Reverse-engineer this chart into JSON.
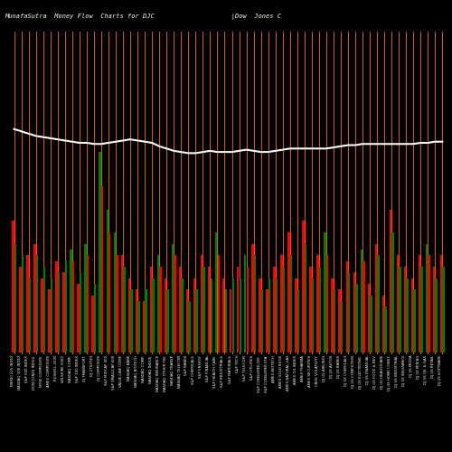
{
  "title": "MunafaSutra  Money Flow  Charts for DJC                    |Dow  Jones C                                                        omp",
  "bg_color": "#000000",
  "orange_line_color": "#FF6600",
  "white_line_color": "#FFFFFF",
  "n_stocks": 60,
  "stocks": [
    "NIKKEI 225 INDEX",
    "NASDAQ 100 INDEX",
    "S&P 500 INDEX",
    "DOW JONES INDUS.",
    "NYSE COMPOSITE",
    "AMEX COMPOSITE",
    "RUSSELL 2000",
    "WILSHIRE 5000",
    "NASDAQ COMP.",
    "S&P 100 INDEX",
    "DJ TRANSPORT.",
    "DJ UTILITIES",
    "DJ COMPOSITE",
    "S&P MIDCAP 400",
    "S&P SMALLCAP 600",
    "VALUE LINE COMP.",
    "NASDAQ BANK",
    "NASDAQ BIOTECH",
    "NASDAQ COMP.",
    "NASDAQ INDUS.",
    "NASDAQ INSURANCE",
    "NASDAQ OTHER FIN.",
    "NASDAQ TRANSP.",
    "NASDAQ TELECOM",
    "S&P BANKS",
    "S&P CHEMICALS",
    "S&P ENERGY",
    "S&P FINANCIAL",
    "S&P HEALTH CARE",
    "S&P INDUSTRIALS",
    "S&P MATERIALS",
    "S&P TECH",
    "S&P TELECOM",
    "S&P UTILITIES",
    "S&P CONSUMER DIS.",
    "S&P CONSUMER STA.",
    "AMEX BIOTECH",
    "AMEX GOLD BUGS",
    "AMEX NATURAL GAS",
    "AMEX OIL INDEX",
    "AMEX PHARMA",
    "AMEX SECURITIES",
    "CBOE VOLATILITY",
    "DJ US AIRLINES",
    "DJ US AUTOS",
    "DJ US BANKS",
    "DJ US CHEMICALS",
    "DJ US COMPUTERS",
    "DJ US ELECTRONIC",
    "DJ US FINANCIAL",
    "DJ US FOOD & BEV.",
    "DJ US HEALTHCARE",
    "DJ US HOME CONST.",
    "DJ US INDUSTRIAL",
    "DJ US INSURANCE",
    "DJ US MEDIA",
    "DJ US MINING",
    "DJ US OIL & GAS",
    "DJ US RETAIL",
    "DJ US SOFTWARE"
  ],
  "bar1_heights": [
    115,
    75,
    85,
    95,
    65,
    55,
    80,
    70,
    90,
    60,
    95,
    50,
    175,
    125,
    105,
    85,
    65,
    55,
    45,
    75,
    85,
    65,
    95,
    75,
    55,
    65,
    85,
    75,
    105,
    65,
    55,
    75,
    85,
    95,
    65,
    55,
    75,
    85,
    105,
    65,
    115,
    75,
    85,
    105,
    65,
    55,
    80,
    70,
    90,
    60,
    95,
    50,
    125,
    85,
    75,
    65,
    85,
    95,
    75,
    85
  ],
  "bar2_heights": [
    95,
    85,
    65,
    85,
    75,
    65,
    70,
    80,
    80,
    70,
    85,
    60,
    145,
    105,
    85,
    75,
    55,
    45,
    55,
    65,
    75,
    55,
    85,
    65,
    45,
    55,
    75,
    65,
    85,
    55,
    65,
    65,
    75,
    85,
    55,
    65,
    65,
    75,
    85,
    55,
    95,
    65,
    75,
    85,
    55,
    45,
    70,
    60,
    80,
    50,
    85,
    40,
    105,
    75,
    65,
    55,
    75,
    85,
    65,
    75
  ],
  "bar1_colors": [
    "red",
    "red",
    "red",
    "red",
    "red",
    "red",
    "red",
    "red",
    "green",
    "red",
    "green",
    "red",
    "green",
    "green",
    "green",
    "red",
    "red",
    "red",
    "red",
    "red",
    "green",
    "red",
    "green",
    "red",
    "red",
    "red",
    "red",
    "red",
    "green",
    "red",
    "red",
    "red",
    "green",
    "red",
    "red",
    "red",
    "red",
    "red",
    "red",
    "red",
    "red",
    "red",
    "red",
    "green",
    "red",
    "red",
    "red",
    "red",
    "green",
    "red",
    "red",
    "red",
    "red",
    "red",
    "red",
    "red",
    "red",
    "green",
    "red",
    "red"
  ],
  "bar2_colors": [
    "green",
    "green",
    "green",
    "green",
    "green",
    "green",
    "green",
    "green",
    "red",
    "green",
    "red",
    "green",
    "red",
    "red",
    "red",
    "green",
    "green",
    "green",
    "green",
    "green",
    "red",
    "green",
    "red",
    "green",
    "green",
    "green",
    "green",
    "green",
    "red",
    "green",
    "green",
    "green",
    "red",
    "green",
    "green",
    "green",
    "green",
    "green",
    "green",
    "green",
    "green",
    "green",
    "green",
    "red",
    "green",
    "green",
    "green",
    "green",
    "red",
    "green",
    "green",
    "green",
    "green",
    "green",
    "green",
    "green",
    "green",
    "red",
    "green",
    "green"
  ],
  "white_line_y": [
    195,
    193,
    191,
    189,
    188,
    187,
    186,
    185,
    184,
    183,
    183,
    182,
    182,
    183,
    184,
    185,
    186,
    185,
    184,
    183,
    180,
    178,
    176,
    175,
    174,
    174,
    175,
    176,
    175,
    175,
    175,
    176,
    177,
    176,
    175,
    175,
    176,
    177,
    178,
    178,
    178,
    178,
    178,
    178,
    179,
    180,
    181,
    181,
    182,
    182,
    182,
    182,
    182,
    182,
    182,
    182,
    183,
    183,
    184,
    184
  ]
}
